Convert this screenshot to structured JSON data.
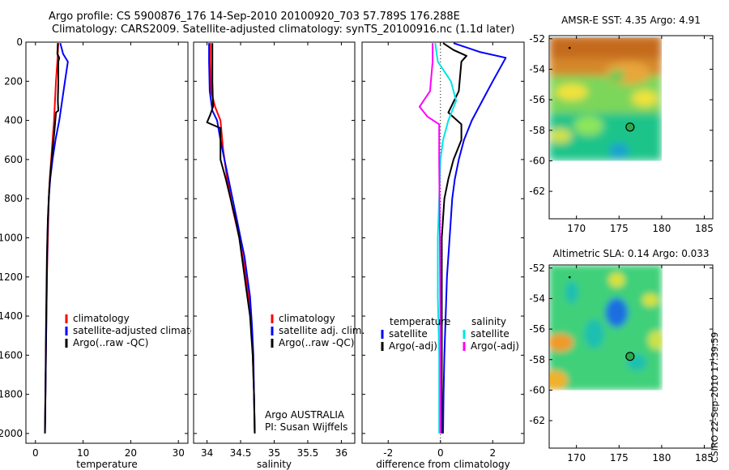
{
  "header": {
    "line1": "Argo profile: CS 5900876_176 14-Sep-2010 20100920_703 57.789S 176.288E",
    "line2": "Climatology: CARS2009. Satellite-adjusted climatology: synTS_20100916.nc (1.1d later)"
  },
  "side_label": "CSIRO 22-Sep-2010 17:39:59",
  "colors": {
    "red": "#ff0000",
    "blue": "#0000ff",
    "black": "#000000",
    "cyan": "#00e5e5",
    "magenta": "#ff00ff"
  },
  "chart_data": [
    {
      "type": "line",
      "xlabel": "temperature",
      "xlim": [
        -2,
        32
      ],
      "ylim": [
        0,
        2050
      ],
      "y_reversed": true,
      "xticks": [
        0,
        10,
        20,
        30
      ],
      "yticks": [
        0,
        200,
        400,
        600,
        800,
        1000,
        1200,
        1400,
        1600,
        1800,
        2000
      ],
      "legend": [
        "climatology",
        "satellite-adjusted climatology",
        "Argo(..raw -QC)"
      ],
      "series": [
        {
          "name": "climatology",
          "color": "red",
          "points": [
            [
              4.8,
              5
            ],
            [
              4.6,
              100
            ],
            [
              4.3,
              200
            ],
            [
              4.1,
              300
            ],
            [
              3.9,
              400
            ],
            [
              3.6,
              500
            ],
            [
              3.3,
              600
            ],
            [
              3.0,
              700
            ],
            [
              2.8,
              800
            ],
            [
              2.6,
              1000
            ],
            [
              2.4,
              1200
            ],
            [
              2.3,
              1400
            ],
            [
              2.2,
              1600
            ],
            [
              2.1,
              1800
            ],
            [
              2.0,
              2000
            ]
          ]
        },
        {
          "name": "satellite-adjusted climatology",
          "color": "blue",
          "points": [
            [
              5.2,
              5
            ],
            [
              5.8,
              60
            ],
            [
              6.8,
              100
            ],
            [
              6.2,
              200
            ],
            [
              5.6,
              300
            ],
            [
              5.0,
              400
            ],
            [
              4.2,
              500
            ],
            [
              3.6,
              600
            ],
            [
              3.1,
              700
            ],
            [
              2.8,
              800
            ],
            [
              2.5,
              1000
            ],
            [
              2.4,
              1200
            ],
            [
              2.3,
              1400
            ],
            [
              2.2,
              1600
            ],
            [
              2.1,
              1800
            ],
            [
              2.0,
              2000
            ]
          ]
        },
        {
          "name": "Argo(..raw -QC)",
          "color": "black",
          "points": [
            [
              4.7,
              5
            ],
            [
              4.6,
              60
            ],
            [
              5.0,
              80
            ],
            [
              4.8,
              100
            ],
            [
              4.8,
              200
            ],
            [
              4.7,
              300
            ],
            [
              4.8,
              350
            ],
            [
              4.3,
              360
            ],
            [
              4.0,
              450
            ],
            [
              3.6,
              550
            ],
            [
              3.2,
              650
            ],
            [
              2.9,
              750
            ],
            [
              2.6,
              900
            ],
            [
              2.4,
              1100
            ],
            [
              2.3,
              1300
            ],
            [
              2.2,
              1500
            ],
            [
              2.1,
              1800
            ],
            [
              2.0,
              2000
            ]
          ]
        }
      ]
    },
    {
      "type": "line",
      "xlabel": "salinity",
      "xlim": [
        33.8,
        36.2
      ],
      "ylim": [
        0,
        2050
      ],
      "y_reversed": true,
      "xticks": [
        34,
        34.5,
        35,
        35.5,
        36
      ],
      "yticks": [
        0,
        200,
        400,
        600,
        800,
        1000,
        1200,
        1400,
        1600,
        1800,
        2000
      ],
      "legend": [
        "climatology",
        "satellite adj. clim.",
        "Argo(..raw -QC)"
      ],
      "annotation": [
        "Argo AUSTRALIA",
        "PI: Susan Wijffels"
      ],
      "series": [
        {
          "name": "climatology",
          "color": "red",
          "points": [
            [
              34.05,
              5
            ],
            [
              34.05,
              100
            ],
            [
              34.06,
              250
            ],
            [
              34.12,
              330
            ],
            [
              34.2,
              400
            ],
            [
              34.24,
              550
            ],
            [
              34.3,
              700
            ],
            [
              34.38,
              850
            ],
            [
              34.48,
              1000
            ],
            [
              34.56,
              1150
            ],
            [
              34.62,
              1300
            ],
            [
              34.66,
              1450
            ],
            [
              34.68,
              1600
            ],
            [
              34.7,
              1800
            ],
            [
              34.71,
              2000
            ]
          ]
        },
        {
          "name": "satellite adj. clim.",
          "color": "blue",
          "points": [
            [
              34.03,
              5
            ],
            [
              34.03,
              100
            ],
            [
              34.04,
              250
            ],
            [
              34.08,
              350
            ],
            [
              34.15,
              400
            ],
            [
              34.2,
              500
            ],
            [
              34.26,
              600
            ],
            [
              34.32,
              700
            ],
            [
              34.38,
              800
            ],
            [
              34.44,
              900
            ],
            [
              34.5,
              1000
            ],
            [
              34.56,
              1100
            ],
            [
              34.6,
              1200
            ],
            [
              34.64,
              1300
            ],
            [
              34.67,
              1450
            ],
            [
              34.69,
              1600
            ],
            [
              34.7,
              1800
            ],
            [
              34.71,
              2000
            ]
          ]
        },
        {
          "name": "Argo(..raw -QC)",
          "color": "black",
          "points": [
            [
              34.08,
              5
            ],
            [
              34.08,
              200
            ],
            [
              34.09,
              330
            ],
            [
              34.05,
              370
            ],
            [
              34.0,
              410
            ],
            [
              34.2,
              440
            ],
            [
              34.2,
              600
            ],
            [
              34.28,
              700
            ],
            [
              34.35,
              800
            ],
            [
              34.42,
              900
            ],
            [
              34.48,
              1000
            ],
            [
              34.52,
              1100
            ],
            [
              34.56,
              1200
            ],
            [
              34.6,
              1300
            ],
            [
              34.64,
              1400
            ],
            [
              34.66,
              1500
            ],
            [
              34.68,
              1600
            ],
            [
              34.7,
              1800
            ],
            [
              34.71,
              2000
            ]
          ]
        }
      ]
    },
    {
      "type": "line",
      "xlabel": "difference from climatology",
      "xlim": [
        -3,
        3.2
      ],
      "ylim": [
        0,
        2050
      ],
      "y_reversed": true,
      "xticks": [
        -2,
        0,
        2
      ],
      "yticks": [
        0,
        200,
        400,
        600,
        800,
        1000,
        1200,
        1400,
        1600,
        1800,
        2000
      ],
      "legend_headers": [
        "temperature",
        "salinity"
      ],
      "legend": [
        "satellite",
        "Argo(-adj)",
        "satellite",
        "Argo(-adj)"
      ],
      "series": [
        {
          "name": "satellite",
          "group": "temperature",
          "color": "blue",
          "points": [
            [
              0.5,
              5
            ],
            [
              1.5,
              50
            ],
            [
              2.5,
              80
            ],
            [
              2.0,
              200
            ],
            [
              1.6,
              300
            ],
            [
              1.2,
              400
            ],
            [
              0.9,
              500
            ],
            [
              0.7,
              600
            ],
            [
              0.55,
              700
            ],
            [
              0.45,
              800
            ],
            [
              0.35,
              1000
            ],
            [
              0.25,
              1200
            ],
            [
              0.2,
              1400
            ],
            [
              0.15,
              1600
            ],
            [
              0.12,
              1800
            ],
            [
              0.1,
              2000
            ]
          ]
        },
        {
          "name": "Argo(-adj)",
          "group": "temperature",
          "color": "black",
          "points": [
            [
              0.1,
              5
            ],
            [
              0.5,
              40
            ],
            [
              1.0,
              70
            ],
            [
              0.8,
              100
            ],
            [
              0.7,
              250
            ],
            [
              0.3,
              360
            ],
            [
              0.8,
              420
            ],
            [
              0.8,
              500
            ],
            [
              0.5,
              600
            ],
            [
              0.3,
              700
            ],
            [
              0.15,
              800
            ],
            [
              0.05,
              1000
            ],
            [
              0.05,
              1500
            ],
            [
              0.05,
              2000
            ]
          ]
        },
        {
          "name": "satellite",
          "group": "salinity",
          "color": "cyan",
          "points": [
            [
              -0.2,
              5
            ],
            [
              -0.1,
              100
            ],
            [
              0.4,
              200
            ],
            [
              0.6,
              300
            ],
            [
              0.3,
              400
            ],
            [
              0.1,
              500
            ],
            [
              0.0,
              600
            ],
            [
              -0.05,
              800
            ],
            [
              -0.1,
              1000
            ],
            [
              -0.1,
              1300
            ],
            [
              -0.05,
              1600
            ],
            [
              -0.05,
              1800
            ],
            [
              -0.05,
              2000
            ]
          ]
        },
        {
          "name": "Argo(-adj)",
          "group": "salinity",
          "color": "magenta",
          "points": [
            [
              -0.3,
              5
            ],
            [
              -0.3,
              100
            ],
            [
              -0.4,
              250
            ],
            [
              -0.8,
              330
            ],
            [
              -0.5,
              380
            ],
            [
              -0.05,
              420
            ],
            [
              -0.05,
              600
            ],
            [
              -0.02,
              1000
            ],
            [
              0.0,
              1500
            ],
            [
              0.0,
              2000
            ]
          ]
        }
      ]
    },
    {
      "type": "heatmap",
      "title": "AMSR-E SST: 4.35 Argo: 4.91",
      "xlim": [
        166.8,
        186
      ],
      "ylim": [
        -63.8,
        -51.8
      ],
      "xticks": [
        170,
        175,
        180,
        185
      ],
      "yticks": [
        -52,
        -54,
        -56,
        -58,
        -60,
        -62
      ],
      "field_extent": {
        "lon": [
          166.8,
          180
        ],
        "lat": [
          -60,
          -51.8
        ]
      },
      "argo_position": {
        "lon": 176.288,
        "lat": -57.789
      }
    },
    {
      "type": "heatmap",
      "title": "Altimetric SLA: 0.14 Argo: 0.033",
      "xlim": [
        166.8,
        186
      ],
      "ylim": [
        -63.8,
        -51.8
      ],
      "xticks": [
        170,
        175,
        180,
        185
      ],
      "yticks": [
        -52,
        -54,
        -56,
        -58,
        -60,
        -62
      ],
      "field_extent": {
        "lon": [
          166.8,
          180
        ],
        "lat": [
          -60,
          -51.8
        ]
      },
      "argo_position": {
        "lon": 176.288,
        "lat": -57.789
      }
    }
  ]
}
